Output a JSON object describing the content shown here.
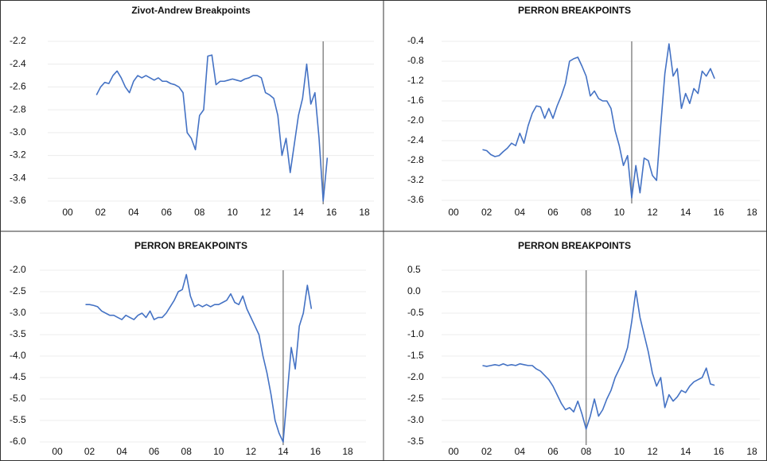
{
  "chart_data": [
    {
      "type": "line",
      "title": "Zivot-Andrew Breakpoints",
      "color": "#4472c4",
      "grid": true,
      "breakpoint": 15.5,
      "x": [
        1.75,
        2,
        2.25,
        2.5,
        2.75,
        3,
        3.25,
        3.5,
        3.75,
        4,
        4.25,
        4.5,
        4.75,
        5,
        5.25,
        5.5,
        5.75,
        6,
        6.25,
        6.5,
        6.75,
        7,
        7.25,
        7.5,
        7.75,
        8,
        8.25,
        8.5,
        8.75,
        9,
        9.25,
        9.5,
        9.75,
        10,
        10.25,
        10.5,
        10.75,
        11,
        11.25,
        11.5,
        11.75,
        12,
        12.25,
        12.5,
        12.75,
        13,
        13.25,
        13.5,
        13.75,
        14,
        14.25,
        14.5,
        14.75,
        15,
        15.25,
        15.5,
        15.75
      ],
      "values": [
        -2.67,
        -2.6,
        -2.56,
        -2.57,
        -2.5,
        -2.46,
        -2.52,
        -2.6,
        -2.65,
        -2.55,
        -2.5,
        -2.52,
        -2.5,
        -2.52,
        -2.54,
        -2.52,
        -2.55,
        -2.55,
        -2.57,
        -2.58,
        -2.6,
        -2.65,
        -3.0,
        -3.05,
        -3.15,
        -2.85,
        -2.8,
        -2.33,
        -2.32,
        -2.58,
        -2.55,
        -2.55,
        -2.54,
        -2.53,
        -2.54,
        -2.55,
        -2.53,
        -2.52,
        -2.5,
        -2.5,
        -2.52,
        -2.65,
        -2.67,
        -2.7,
        -2.85,
        -3.2,
        -3.05,
        -3.35,
        -3.1,
        -2.85,
        -2.7,
        -2.4,
        -2.75,
        -2.65,
        -3.05,
        -3.6,
        -3.22
      ],
      "xlim": [
        0,
        18
      ],
      "xticks": [
        {
          "value": 0,
          "label": "00"
        },
        {
          "value": 2,
          "label": "02"
        },
        {
          "value": 4,
          "label": "04"
        },
        {
          "value": 6,
          "label": "06"
        },
        {
          "value": 8,
          "label": "08"
        },
        10,
        12,
        14,
        16,
        18
      ],
      "ylim": [
        -3.6,
        -2.2
      ],
      "yticks": [
        -2.2,
        -2.4,
        -2.6,
        -2.8,
        {
          "value": -3,
          "label": "-3.0"
        },
        -3.2,
        -3.4,
        -3.6
      ]
    },
    {
      "type": "line",
      "title": "PERRON BREAKPOINTS",
      "color": "#4472c4",
      "grid": true,
      "breakpoint": 10.75,
      "x": [
        1.75,
        2,
        2.25,
        2.5,
        2.75,
        3,
        3.25,
        3.5,
        3.75,
        4,
        4.25,
        4.5,
        4.75,
        5,
        5.25,
        5.5,
        5.75,
        6,
        6.25,
        6.5,
        6.75,
        7,
        7.25,
        7.5,
        7.75,
        8,
        8.25,
        8.5,
        8.75,
        9,
        9.25,
        9.5,
        9.75,
        10,
        10.25,
        10.5,
        10.75,
        11,
        11.25,
        11.5,
        11.75,
        12,
        12.25,
        12.5,
        12.75,
        13,
        13.25,
        13.5,
        13.75,
        14,
        14.25,
        14.5,
        14.75,
        15,
        15.25,
        15.5,
        15.75
      ],
      "values": [
        -2.58,
        -2.6,
        -2.68,
        -2.72,
        -2.7,
        -2.62,
        -2.55,
        -2.45,
        -2.5,
        -2.25,
        -2.45,
        -2.1,
        -1.85,
        -1.7,
        -1.72,
        -1.95,
        -1.75,
        -1.95,
        -1.7,
        -1.5,
        -1.25,
        -0.8,
        -0.75,
        -0.72,
        -0.9,
        -1.1,
        -1.5,
        -1.4,
        -1.55,
        -1.6,
        -1.6,
        -1.75,
        -2.2,
        -2.5,
        -2.9,
        -2.7,
        -3.55,
        -2.9,
        -3.45,
        -2.75,
        -2.8,
        -3.1,
        -3.2,
        -2.1,
        -1.05,
        -0.45,
        -1.1,
        -0.95,
        -1.75,
        -1.45,
        -1.65,
        -1.35,
        -1.45,
        -1.0,
        -1.1,
        -0.95,
        -1.15
      ],
      "xlim": [
        0,
        18
      ],
      "xticks": [
        {
          "value": 0,
          "label": "00"
        },
        {
          "value": 2,
          "label": "02"
        },
        {
          "value": 4,
          "label": "04"
        },
        {
          "value": 6,
          "label": "06"
        },
        {
          "value": 8,
          "label": "08"
        },
        10,
        12,
        14,
        16,
        18
      ],
      "ylim": [
        -3.6,
        -0.4
      ],
      "yticks": [
        -0.4,
        -0.8,
        -1.2,
        -1.6,
        {
          "value": -2,
          "label": "-2.0"
        },
        -2.4,
        -2.8,
        -3.2,
        -3.6
      ]
    },
    {
      "type": "line",
      "title": "PERRON BREAKPOINTS",
      "color": "#4472c4",
      "grid": true,
      "breakpoint": 14,
      "x": [
        1.75,
        2,
        2.25,
        2.5,
        2.75,
        3,
        3.25,
        3.5,
        3.75,
        4,
        4.25,
        4.5,
        4.75,
        5,
        5.25,
        5.5,
        5.75,
        6,
        6.25,
        6.5,
        6.75,
        7,
        7.25,
        7.5,
        7.75,
        8,
        8.25,
        8.5,
        8.75,
        9,
        9.25,
        9.5,
        9.75,
        10,
        10.25,
        10.5,
        10.75,
        11,
        11.25,
        11.5,
        11.75,
        12,
        12.25,
        12.5,
        12.75,
        13,
        13.25,
        13.5,
        13.75,
        14,
        14.25,
        14.5,
        14.75,
        15,
        15.25,
        15.5,
        15.75
      ],
      "values": [
        -2.8,
        -2.8,
        -2.82,
        -2.85,
        -2.95,
        -3.0,
        -3.05,
        -3.05,
        -3.1,
        -3.15,
        -3.05,
        -3.1,
        -3.15,
        -3.05,
        -3.0,
        -3.1,
        -2.95,
        -3.15,
        -3.1,
        -3.1,
        -3.0,
        -2.85,
        -2.7,
        -2.5,
        -2.45,
        -2.1,
        -2.6,
        -2.85,
        -2.8,
        -2.85,
        -2.8,
        -2.85,
        -2.8,
        -2.8,
        -2.75,
        -2.7,
        -2.55,
        -2.75,
        -2.8,
        -2.6,
        -2.9,
        -3.1,
        -3.3,
        -3.5,
        -4.0,
        -4.4,
        -4.9,
        -5.5,
        -5.8,
        -6.0,
        -4.9,
        -3.8,
        -4.3,
        -3.3,
        -3.0,
        -2.35,
        -2.9
      ],
      "xlim": [
        0,
        18
      ],
      "xticks": [
        {
          "value": 0,
          "label": "00"
        },
        {
          "value": 2,
          "label": "02"
        },
        {
          "value": 4,
          "label": "04"
        },
        {
          "value": 6,
          "label": "06"
        },
        {
          "value": 8,
          "label": "08"
        },
        10,
        12,
        14,
        16,
        18
      ],
      "ylim": [
        -6,
        -2
      ],
      "yticks": [
        {
          "value": -2,
          "label": "-2.0"
        },
        -2.5,
        {
          "value": -3,
          "label": "-3.0"
        },
        -3.5,
        {
          "value": -4,
          "label": "-4.0"
        },
        -4.5,
        {
          "value": -5,
          "label": "-5.0"
        },
        -5.5,
        {
          "value": -6,
          "label": "-6.0"
        }
      ]
    },
    {
      "type": "line",
      "title": "PERRON BREAKPOINTS",
      "color": "#4472c4",
      "grid": true,
      "breakpoint": 8,
      "x": [
        1.75,
        2,
        2.25,
        2.5,
        2.75,
        3,
        3.25,
        3.5,
        3.75,
        4,
        4.25,
        4.5,
        4.75,
        5,
        5.25,
        5.5,
        5.75,
        6,
        6.25,
        6.5,
        6.75,
        7,
        7.25,
        7.5,
        7.75,
        8,
        8.25,
        8.5,
        8.75,
        9,
        9.25,
        9.5,
        9.75,
        10,
        10.25,
        10.5,
        10.75,
        11,
        11.25,
        11.5,
        11.75,
        12,
        12.25,
        12.5,
        12.75,
        13,
        13.25,
        13.5,
        13.75,
        14,
        14.25,
        14.5,
        14.75,
        15,
        15.25,
        15.5,
        15.75
      ],
      "values": [
        -1.72,
        -1.74,
        -1.72,
        -1.7,
        -1.72,
        -1.68,
        -1.72,
        -1.7,
        -1.72,
        -1.68,
        -1.7,
        -1.72,
        -1.72,
        -1.8,
        -1.85,
        -1.95,
        -2.05,
        -2.2,
        -2.4,
        -2.6,
        -2.75,
        -2.7,
        -2.8,
        -2.55,
        -2.85,
        -3.2,
        -2.9,
        -2.5,
        -2.9,
        -2.75,
        -2.5,
        -2.3,
        -2.0,
        -1.8,
        -1.6,
        -1.3,
        -0.7,
        0.02,
        -0.6,
        -1.0,
        -1.4,
        -1.9,
        -2.2,
        -2.0,
        -2.7,
        -2.4,
        -2.55,
        -2.45,
        -2.3,
        -2.35,
        -2.2,
        -2.1,
        -2.05,
        -2.0,
        -1.78,
        -2.15,
        -2.18
      ],
      "xlim": [
        0,
        18
      ],
      "xticks": [
        {
          "value": 0,
          "label": "00"
        },
        {
          "value": 2,
          "label": "02"
        },
        {
          "value": 4,
          "label": "04"
        },
        {
          "value": 6,
          "label": "06"
        },
        {
          "value": 8,
          "label": "08"
        },
        10,
        12,
        14,
        16,
        18
      ],
      "ylim": [
        -3.5,
        0.5
      ],
      "yticks": [
        0.5,
        {
          "value": 0,
          "label": "0.0"
        },
        -0.5,
        {
          "value": -1,
          "label": "-1.0"
        },
        -1.5,
        {
          "value": -2,
          "label": "-2.0"
        },
        -2.5,
        {
          "value": -3,
          "label": "-3.0"
        },
        -3.5
      ]
    }
  ]
}
